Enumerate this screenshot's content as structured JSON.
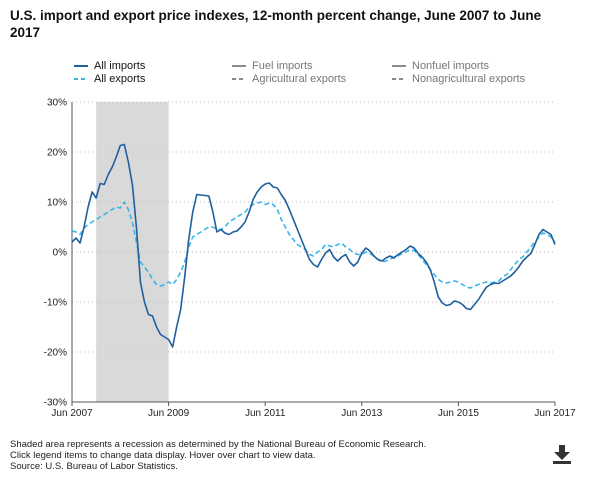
{
  "title": "U.S. import and export price indexes, 12-month percent change, June 2007 to June 2017",
  "legend": [
    {
      "name": "All imports",
      "style": "solid",
      "color": "#1f5f9e",
      "active": true
    },
    {
      "name": "All exports",
      "style": "dashed",
      "color": "#39b4e8",
      "active": true
    },
    {
      "name": "Fuel imports",
      "style": "solid",
      "color": "#8a8a8a",
      "active": false
    },
    {
      "name": "Agricultural exports",
      "style": "dashed",
      "color": "#8a8a8a",
      "active": false
    },
    {
      "name": "Nonfuel imports",
      "style": "solid",
      "color": "#8a8a8a",
      "active": false
    },
    {
      "name": "Nonagricultural exports",
      "style": "dashed",
      "color": "#8a8a8a",
      "active": false
    }
  ],
  "footnotes": [
    "Shaded area represents a recession as determined by the National Bureau of Economic Research.",
    "Click legend items to change data display. Hover over chart to view data.",
    "Source: U.S. Bureau of Labor Statistics."
  ],
  "download_icon": "download-icon",
  "chart_data": {
    "type": "line",
    "title": "U.S. import and export price indexes, 12-month percent change, June 2007 to June 2017",
    "x_tick_labels": [
      "Jun 2007",
      "Jun 2009",
      "Jun 2011",
      "Jun 2013",
      "Jun 2015",
      "Jun 2017"
    ],
    "x_range": [
      "2007-06",
      "2017-06"
    ],
    "y_tick_labels": [
      "30%",
      "20%",
      "10%",
      "0%",
      "-10%",
      "-20%",
      "-30%"
    ],
    "ylim": [
      -30,
      30
    ],
    "grid": true,
    "recession": {
      "start": "2007-12",
      "end": "2009-06"
    },
    "series": [
      {
        "name": "All imports",
        "color": "#1f5f9e",
        "style": "solid",
        "points": [
          [
            "2007-06",
            2.0
          ],
          [
            "2007-07",
            2.8
          ],
          [
            "2007-08",
            1.8
          ],
          [
            "2007-09",
            5.0
          ],
          [
            "2007-10",
            9.0
          ],
          [
            "2007-11",
            12.0
          ],
          [
            "2007-12",
            10.8
          ],
          [
            "2008-01",
            13.7
          ],
          [
            "2008-02",
            13.5
          ],
          [
            "2008-03",
            15.5
          ],
          [
            "2008-04",
            17.0
          ],
          [
            "2008-05",
            19.0
          ],
          [
            "2008-06",
            21.3
          ],
          [
            "2008-07",
            21.5
          ],
          [
            "2008-08",
            18.0
          ],
          [
            "2008-09",
            13.5
          ],
          [
            "2008-10",
            5.0
          ],
          [
            "2008-11",
            -6.0
          ],
          [
            "2008-12",
            -10.0
          ],
          [
            "2009-01",
            -12.5
          ],
          [
            "2009-02",
            -12.8
          ],
          [
            "2009-03",
            -15.0
          ],
          [
            "2009-04",
            -16.5
          ],
          [
            "2009-05",
            -17.0
          ],
          [
            "2009-06",
            -17.5
          ],
          [
            "2009-07",
            -19.0
          ],
          [
            "2009-08",
            -15.0
          ],
          [
            "2009-09",
            -11.5
          ],
          [
            "2009-10",
            -5.0
          ],
          [
            "2009-11",
            2.5
          ],
          [
            "2009-12",
            8.0
          ],
          [
            "2010-01",
            11.5
          ],
          [
            "2010-02",
            11.4
          ],
          [
            "2010-03",
            11.3
          ],
          [
            "2010-04",
            11.2
          ],
          [
            "2010-05",
            8.0
          ],
          [
            "2010-06",
            4.0
          ],
          [
            "2010-07",
            4.5
          ],
          [
            "2010-08",
            3.8
          ],
          [
            "2010-09",
            3.5
          ],
          [
            "2010-10",
            4.0
          ],
          [
            "2010-11",
            4.2
          ],
          [
            "2010-12",
            5.0
          ],
          [
            "2011-01",
            6.0
          ],
          [
            "2011-02",
            8.0
          ],
          [
            "2011-03",
            10.5
          ],
          [
            "2011-04",
            12.0
          ],
          [
            "2011-05",
            13.0
          ],
          [
            "2011-06",
            13.6
          ],
          [
            "2011-07",
            13.8
          ],
          [
            "2011-08",
            13.0
          ],
          [
            "2011-09",
            12.8
          ],
          [
            "2011-10",
            11.5
          ],
          [
            "2011-11",
            10.3
          ],
          [
            "2011-12",
            8.5
          ],
          [
            "2012-01",
            6.5
          ],
          [
            "2012-02",
            4.5
          ],
          [
            "2012-03",
            2.5
          ],
          [
            "2012-04",
            0.5
          ],
          [
            "2012-05",
            -1.5
          ],
          [
            "2012-06",
            -2.5
          ],
          [
            "2012-07",
            -3.0
          ],
          [
            "2012-08",
            -1.5
          ],
          [
            "2012-09",
            -0.2
          ],
          [
            "2012-10",
            0.5
          ],
          [
            "2012-11",
            -1.0
          ],
          [
            "2012-12",
            -1.8
          ],
          [
            "2013-01",
            -1.0
          ],
          [
            "2013-02",
            -0.5
          ],
          [
            "2013-03",
            -2.0
          ],
          [
            "2013-04",
            -2.8
          ],
          [
            "2013-05",
            -2.0
          ],
          [
            "2013-06",
            -0.2
          ],
          [
            "2013-07",
            0.8
          ],
          [
            "2013-08",
            0.2
          ],
          [
            "2013-09",
            -0.8
          ],
          [
            "2013-10",
            -1.5
          ],
          [
            "2013-11",
            -1.8
          ],
          [
            "2013-12",
            -1.2
          ],
          [
            "2014-01",
            -0.8
          ],
          [
            "2014-02",
            -1.2
          ],
          [
            "2014-03",
            -0.5
          ],
          [
            "2014-04",
            0.0
          ],
          [
            "2014-05",
            0.5
          ],
          [
            "2014-06",
            1.2
          ],
          [
            "2014-07",
            0.8
          ],
          [
            "2014-08",
            -0.3
          ],
          [
            "2014-09",
            -1.0
          ],
          [
            "2014-10",
            -2.0
          ],
          [
            "2014-11",
            -3.5
          ],
          [
            "2014-12",
            -6.0
          ],
          [
            "2015-01",
            -9.0
          ],
          [
            "2015-02",
            -10.2
          ],
          [
            "2015-03",
            -10.7
          ],
          [
            "2015-04",
            -10.5
          ],
          [
            "2015-05",
            -9.8
          ],
          [
            "2015-06",
            -10.0
          ],
          [
            "2015-07",
            -10.5
          ],
          [
            "2015-08",
            -11.3
          ],
          [
            "2015-09",
            -11.5
          ],
          [
            "2015-10",
            -10.5
          ],
          [
            "2015-11",
            -9.5
          ],
          [
            "2015-12",
            -8.2
          ],
          [
            "2016-01",
            -7.0
          ],
          [
            "2016-02",
            -6.5
          ],
          [
            "2016-03",
            -6.2
          ],
          [
            "2016-04",
            -6.3
          ],
          [
            "2016-05",
            -5.8
          ],
          [
            "2016-06",
            -5.3
          ],
          [
            "2016-07",
            -4.8
          ],
          [
            "2016-08",
            -4.0
          ],
          [
            "2016-09",
            -3.0
          ],
          [
            "2016-10",
            -1.8
          ],
          [
            "2016-11",
            -1.0
          ],
          [
            "2016-12",
            -0.3
          ],
          [
            "2017-01",
            1.5
          ],
          [
            "2017-02",
            3.5
          ],
          [
            "2017-03",
            4.5
          ],
          [
            "2017-04",
            4.0
          ],
          [
            "2017-05",
            3.5
          ],
          [
            "2017-06",
            1.5
          ]
        ]
      },
      {
        "name": "All exports",
        "color": "#39b4e8",
        "style": "dashed",
        "points": [
          [
            "2007-06",
            4.2
          ],
          [
            "2007-07",
            4.0
          ],
          [
            "2007-08",
            3.5
          ],
          [
            "2007-09",
            4.8
          ],
          [
            "2007-10",
            5.5
          ],
          [
            "2007-11",
            6.0
          ],
          [
            "2007-12",
            6.5
          ],
          [
            "2008-01",
            7.0
          ],
          [
            "2008-02",
            7.5
          ],
          [
            "2008-03",
            8.0
          ],
          [
            "2008-04",
            8.5
          ],
          [
            "2008-05",
            9.0
          ],
          [
            "2008-06",
            8.8
          ],
          [
            "2008-07",
            10.0
          ],
          [
            "2008-08",
            8.5
          ],
          [
            "2008-09",
            6.0
          ],
          [
            "2008-10",
            2.0
          ],
          [
            "2008-11",
            -2.0
          ],
          [
            "2008-12",
            -3.0
          ],
          [
            "2009-01",
            -4.0
          ],
          [
            "2009-02",
            -5.5
          ],
          [
            "2009-03",
            -6.5
          ],
          [
            "2009-04",
            -6.8
          ],
          [
            "2009-05",
            -6.5
          ],
          [
            "2009-06",
            -6.0
          ],
          [
            "2009-07",
            -6.5
          ],
          [
            "2009-08",
            -5.5
          ],
          [
            "2009-09",
            -4.0
          ],
          [
            "2009-10",
            -2.0
          ],
          [
            "2009-11",
            1.0
          ],
          [
            "2009-12",
            3.0
          ],
          [
            "2010-01",
            3.5
          ],
          [
            "2010-02",
            4.0
          ],
          [
            "2010-03",
            4.5
          ],
          [
            "2010-04",
            5.0
          ],
          [
            "2010-05",
            5.0
          ],
          [
            "2010-06",
            4.5
          ],
          [
            "2010-07",
            4.5
          ],
          [
            "2010-08",
            5.0
          ],
          [
            "2010-09",
            6.0
          ],
          [
            "2010-10",
            6.5
          ],
          [
            "2010-11",
            7.0
          ],
          [
            "2010-12",
            7.5
          ],
          [
            "2011-01",
            8.0
          ],
          [
            "2011-02",
            9.0
          ],
          [
            "2011-03",
            9.5
          ],
          [
            "2011-04",
            9.8
          ],
          [
            "2011-05",
            10.0
          ],
          [
            "2011-06",
            9.5
          ],
          [
            "2011-07",
            9.8
          ],
          [
            "2011-08",
            9.5
          ],
          [
            "2011-09",
            8.5
          ],
          [
            "2011-10",
            6.5
          ],
          [
            "2011-11",
            5.0
          ],
          [
            "2011-12",
            3.5
          ],
          [
            "2012-01",
            2.5
          ],
          [
            "2012-02",
            1.5
          ],
          [
            "2012-03",
            1.0
          ],
          [
            "2012-04",
            0.5
          ],
          [
            "2012-05",
            -0.5
          ],
          [
            "2012-06",
            -0.8
          ],
          [
            "2012-07",
            0.0
          ],
          [
            "2012-08",
            0.5
          ],
          [
            "2012-09",
            1.5
          ],
          [
            "2012-10",
            1.2
          ],
          [
            "2012-11",
            1.0
          ],
          [
            "2012-12",
            1.5
          ],
          [
            "2013-01",
            1.8
          ],
          [
            "2013-02",
            1.0
          ],
          [
            "2013-03",
            0.5
          ],
          [
            "2013-04",
            -0.2
          ],
          [
            "2013-05",
            -0.5
          ],
          [
            "2013-06",
            -0.5
          ],
          [
            "2013-07",
            0.0
          ],
          [
            "2013-08",
            -0.3
          ],
          [
            "2013-09",
            -0.8
          ],
          [
            "2013-10",
            -1.5
          ],
          [
            "2013-11",
            -2.0
          ],
          [
            "2013-12",
            -1.8
          ],
          [
            "2014-01",
            -1.5
          ],
          [
            "2014-02",
            -1.0
          ],
          [
            "2014-03",
            -0.8
          ],
          [
            "2014-04",
            -0.3
          ],
          [
            "2014-05",
            0.0
          ],
          [
            "2014-06",
            0.5
          ],
          [
            "2014-07",
            0.3
          ],
          [
            "2014-08",
            -0.5
          ],
          [
            "2014-09",
            -1.5
          ],
          [
            "2014-10",
            -2.5
          ],
          [
            "2014-11",
            -3.5
          ],
          [
            "2014-12",
            -4.5
          ],
          [
            "2015-01",
            -5.5
          ],
          [
            "2015-02",
            -6.0
          ],
          [
            "2015-03",
            -6.2
          ],
          [
            "2015-04",
            -6.0
          ],
          [
            "2015-05",
            -5.8
          ],
          [
            "2015-06",
            -6.0
          ],
          [
            "2015-07",
            -6.5
          ],
          [
            "2015-08",
            -7.0
          ],
          [
            "2015-09",
            -7.2
          ],
          [
            "2015-10",
            -6.8
          ],
          [
            "2015-11",
            -6.5
          ],
          [
            "2015-12",
            -6.2
          ],
          [
            "2016-01",
            -6.0
          ],
          [
            "2016-02",
            -6.2
          ],
          [
            "2016-03",
            -6.0
          ],
          [
            "2016-04",
            -5.8
          ],
          [
            "2016-05",
            -5.0
          ],
          [
            "2016-06",
            -4.5
          ],
          [
            "2016-07",
            -3.5
          ],
          [
            "2016-08",
            -2.5
          ],
          [
            "2016-09",
            -1.5
          ],
          [
            "2016-10",
            -1.0
          ],
          [
            "2016-11",
            0.0
          ],
          [
            "2016-12",
            1.0
          ],
          [
            "2017-01",
            2.0
          ],
          [
            "2017-02",
            3.0
          ],
          [
            "2017-03",
            3.8
          ],
          [
            "2017-04",
            3.5
          ],
          [
            "2017-05",
            3.0
          ],
          [
            "2017-06",
            2.0
          ]
        ]
      }
    ]
  }
}
